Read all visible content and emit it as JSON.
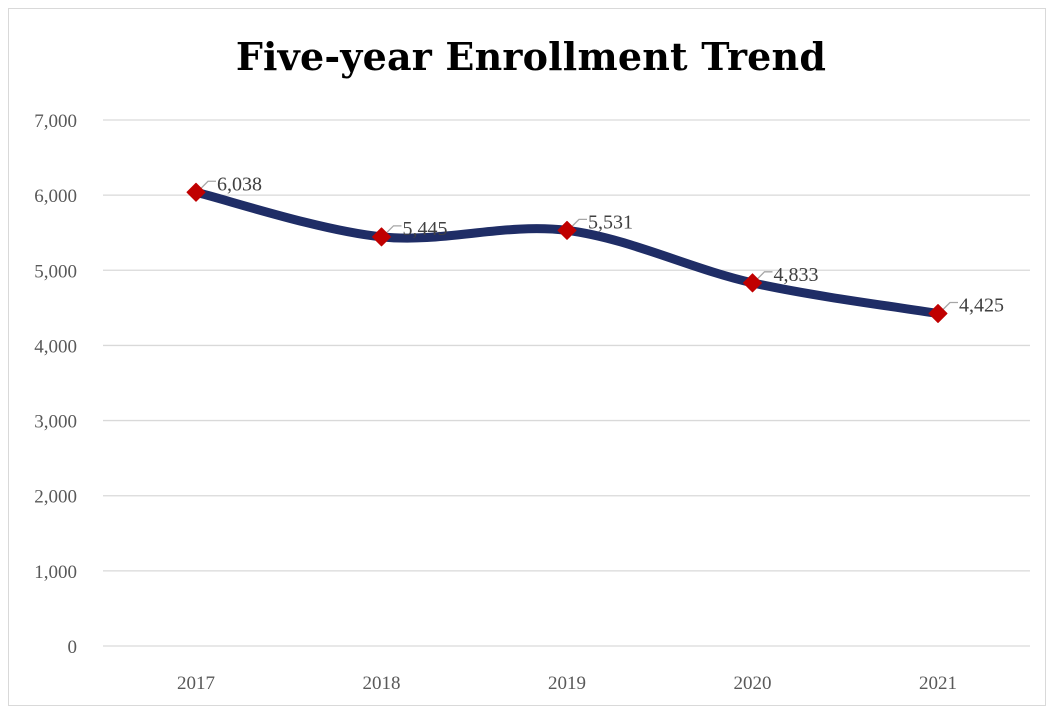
{
  "chart_data": {
    "type": "line",
    "title": "Five-year Enrollment Trend",
    "xlabel": "",
    "ylabel": "",
    "categories": [
      "2017",
      "2018",
      "2019",
      "2020",
      "2021"
    ],
    "series": [
      {
        "values": [
          6038,
          5445,
          5531,
          4833,
          4425
        ],
        "data_labels": [
          "6,038",
          "5,445",
          "5,531",
          "4,833",
          "4,425"
        ]
      }
    ],
    "ylim": [
      0,
      7000
    ],
    "y_ticks": [
      0,
      1000,
      2000,
      3000,
      4000,
      5000,
      6000,
      7000
    ],
    "y_tick_labels": [
      "0",
      "1,000",
      "2,000",
      "3,000",
      "4,000",
      "5,000",
      "6,000",
      "7,000"
    ],
    "grid": true,
    "legend": "none",
    "smooth": true,
    "colors": {
      "line": "#1f2d66",
      "marker": "#c00000",
      "grid": "#d9d9d9"
    }
  }
}
